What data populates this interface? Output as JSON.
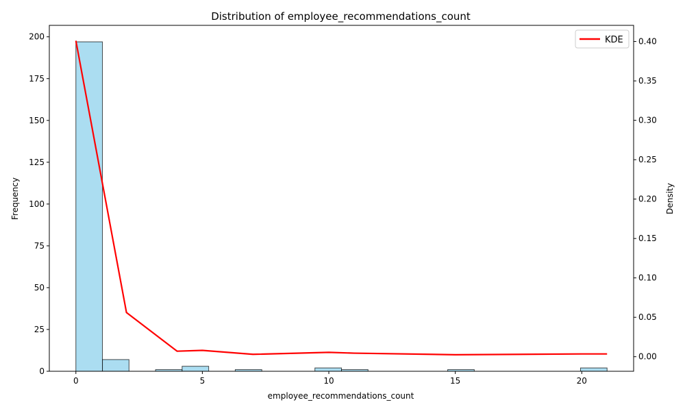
{
  "chart_data": {
    "type": "bar",
    "title": "Distribution of employee_recommendations_count",
    "xlabel": "employee_recommendations_count",
    "ylabel": "Frequency",
    "y2label": "Density",
    "xlim": [
      -1.05,
      22.05
    ],
    "ylim": [
      0,
      206.85
    ],
    "y2lim": [
      -0.0185,
      0.4205
    ],
    "xticks": [
      0,
      5,
      10,
      15,
      20
    ],
    "yticks": [
      0,
      25,
      50,
      75,
      100,
      125,
      150,
      175,
      200
    ],
    "y2ticks": [
      "0.00",
      "0.05",
      "0.10",
      "0.15",
      "0.20",
      "0.25",
      "0.30",
      "0.35",
      "0.40"
    ],
    "bin_width": 1.05,
    "bins": [
      {
        "start": 0.0,
        "count": 197
      },
      {
        "start": 1.05,
        "count": 7
      },
      {
        "start": 3.15,
        "count": 1
      },
      {
        "start": 4.2,
        "count": 3
      },
      {
        "start": 6.3,
        "count": 1
      },
      {
        "start": 9.45,
        "count": 2
      },
      {
        "start": 10.5,
        "count": 1
      },
      {
        "start": 14.7,
        "count": 1
      },
      {
        "start": 19.95,
        "count": 2
      }
    ],
    "hist_color": "#87CEEB",
    "kde": {
      "name": "KDE",
      "color": "#ff0000",
      "x": [
        0,
        2,
        4,
        5,
        7,
        10,
        11,
        15,
        20,
        21
      ],
      "y": [
        0.401,
        0.056,
        0.007,
        0.008,
        0.003,
        0.0055,
        0.0045,
        0.0025,
        0.0035,
        0.0035
      ]
    },
    "legend_position": "top-right",
    "grid": false
  }
}
